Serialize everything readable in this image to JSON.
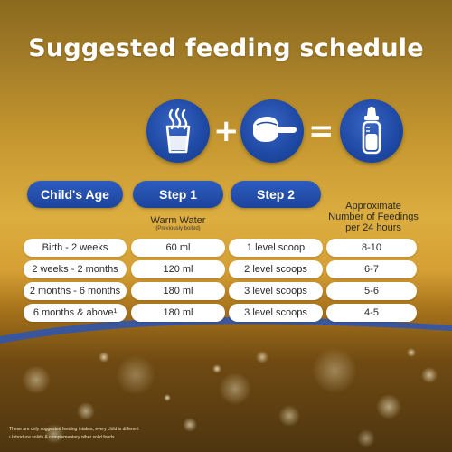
{
  "title": "Suggested feeding schedule",
  "icons": {
    "water": "warm-water-glass-icon",
    "scoop": "formula-scoop-icon",
    "bottle": "baby-bottle-icon",
    "plus": "+",
    "equals": "="
  },
  "headers": {
    "age": "Child's Age",
    "step1": "Step 1",
    "step2": "Step 2"
  },
  "column_labels": {
    "step1_label": "Warm Water",
    "step1_sub": "(Previously boiled)",
    "feedings_line1": "Approximate",
    "feedings_line2": "Number of Feedings",
    "feedings_line3": "per 24 hours"
  },
  "rows": [
    {
      "age": "Birth - 2 weeks",
      "water": "60 ml",
      "scoops": "1 level scoop",
      "feedings": "8-10"
    },
    {
      "age": "2 weeks - 2 months",
      "water": "120 ml",
      "scoops": "2 level scoops",
      "feedings": "6-7"
    },
    {
      "age": "2 months - 6 months",
      "water": "180 ml",
      "scoops": "3 level scoops",
      "feedings": "5-6"
    },
    {
      "age": "6 months & above¹",
      "water": "180 ml",
      "scoops": "3 level scoops",
      "feedings": "4-5"
    }
  ],
  "footnotes": [
    "These are only suggested feeding intakes, every child is different",
    "¹ Introduce solids & complementary other solid foods"
  ],
  "colors": {
    "brand_blue": "#1f4aa6",
    "gold": "#d9a63b",
    "white": "#ffffff"
  }
}
